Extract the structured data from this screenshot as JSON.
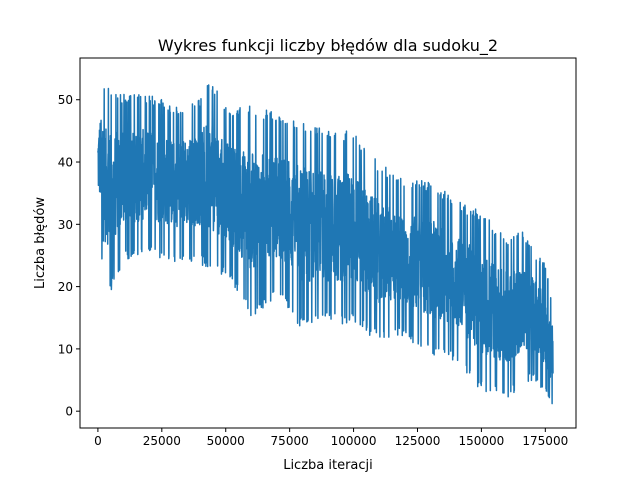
{
  "chart_data": {
    "type": "line",
    "title": "Wykres funkcji liczby błędów dla sudoku_2",
    "xlabel": "Liczba iteracji",
    "ylabel": "Liczba błędów",
    "xlim": [
      -7000,
      187000
    ],
    "ylim": [
      -2.7,
      56.7
    ],
    "xticks": [
      0,
      25000,
      50000,
      75000,
      100000,
      125000,
      150000,
      175000
    ],
    "xtick_labels": [
      "0",
      "25000",
      "50000",
      "75000",
      "100000",
      "125000",
      "150000",
      "175000"
    ],
    "yticks": [
      0,
      10,
      20,
      30,
      40,
      50
    ],
    "ytick_labels": [
      "0",
      "10",
      "20",
      "30",
      "40",
      "50"
    ],
    "grid": false,
    "legend": "none",
    "series": [
      {
        "color": "#1f77b4",
        "envelope": {
          "x": [
            0,
            1000,
            2000,
            5000,
            10000,
            20000,
            30000,
            40000,
            43000,
            50000,
            60000,
            70000,
            80000,
            90000,
            100000,
            110000,
            120000,
            130000,
            140000,
            150000,
            160000,
            166000,
            170000,
            175000,
            178000
          ],
          "low": [
            30,
            28,
            20,
            19,
            24,
            25,
            24,
            24,
            22,
            22,
            15,
            18,
            13,
            14,
            14,
            11,
            12,
            9,
            8,
            3,
            2,
            4,
            5,
            3,
            0
          ],
          "high": [
            50,
            53,
            53,
            52,
            51,
            51,
            49,
            50,
            54,
            49,
            49,
            48,
            47,
            45,
            45,
            40,
            37,
            37,
            34,
            32,
            28,
            29,
            26,
            24,
            17
          ]
        }
      }
    ]
  }
}
